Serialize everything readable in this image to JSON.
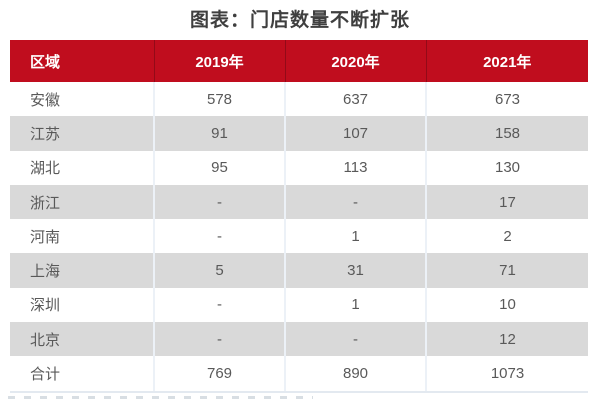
{
  "title": "图表：门店数量不断扩张",
  "colors": {
    "header_bg": "#C00D1E",
    "header_text": "#FFFFFF",
    "row_bg": "#FFFFFF",
    "row_alt_bg": "#D9D9D9",
    "cell_text": "#595959",
    "title_text": "#3F3F3F",
    "divider": "#ECF1F7"
  },
  "table": {
    "columns": [
      "区域",
      "2019年",
      "2020年",
      "2021年"
    ],
    "rows": [
      [
        "安徽",
        "578",
        "637",
        "673"
      ],
      [
        "江苏",
        "91",
        "107",
        "158"
      ],
      [
        "湖北",
        "95",
        "113",
        "130"
      ],
      [
        "浙江",
        "-",
        "-",
        "17"
      ],
      [
        "河南",
        "-",
        "1",
        "2"
      ],
      [
        "上海",
        "5",
        "31",
        "71"
      ],
      [
        "深圳",
        "-",
        "1",
        "10"
      ],
      [
        "北京",
        "-",
        "-",
        "12"
      ],
      [
        "合计",
        "769",
        "890",
        "1073"
      ]
    ]
  },
  "chart_data": {
    "type": "table",
    "title": "图表：门店数量不断扩张",
    "categories": [
      "安徽",
      "江苏",
      "湖北",
      "浙江",
      "河南",
      "上海",
      "深圳",
      "北京",
      "合计"
    ],
    "series": [
      {
        "name": "2019年",
        "values": [
          578,
          91,
          95,
          null,
          null,
          5,
          null,
          null,
          769
        ]
      },
      {
        "name": "2020年",
        "values": [
          637,
          107,
          113,
          null,
          1,
          31,
          1,
          null,
          890
        ]
      },
      {
        "name": "2021年",
        "values": [
          673,
          158,
          130,
          17,
          2,
          71,
          10,
          12,
          1073
        ]
      }
    ],
    "missing_marker": "-"
  },
  "footer": {
    "clipped_text_visible": true
  }
}
